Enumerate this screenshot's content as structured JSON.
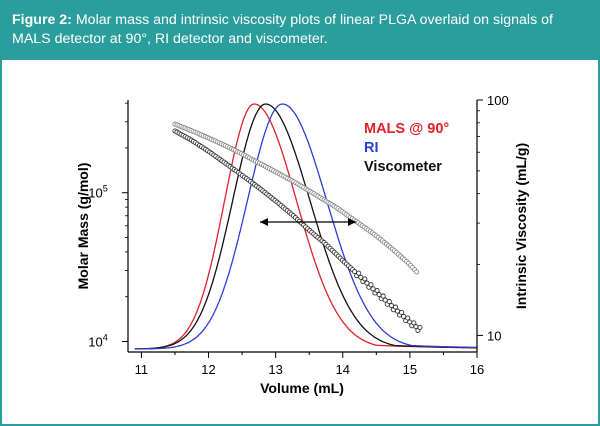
{
  "caption": {
    "label": "Figure 2:",
    "text": " Molar mass and intrinsic viscosity plots of linear PLGA overlaid on signals of MALS detector at 90°, RI detector and viscometer."
  },
  "chart_data": {
    "type": "line",
    "xlabel": "Volume (mL)",
    "ylabel_left": "Molar Mass (g/mol)",
    "ylabel_right": "Intrinsic Viscosity (mL/g)",
    "xlim": [
      10.8,
      16
    ],
    "x_ticks": [
      11,
      12,
      13,
      14,
      15,
      16
    ],
    "x_tick_labels": [
      "11",
      "12",
      "13",
      "14",
      "15",
      "16"
    ],
    "y_left_scale": "log",
    "y_left_lim": [
      8500,
      420000
    ],
    "y_left_tick_base": [
      "10",
      "10"
    ],
    "y_left_tick_exp": [
      "5",
      "4"
    ],
    "y_left_tick_values": [
      100000,
      10000
    ],
    "y_right_scale": "log",
    "y_right_lim": [
      8.5,
      100
    ],
    "y_right_tick_labels": [
      "100",
      "10"
    ],
    "y_right_tick_values": [
      100,
      10
    ],
    "grid": false,
    "legend_position": "top-right",
    "legend": [
      {
        "name": "MALS @ 90°",
        "color": "#e0202a"
      },
      {
        "name": "RI",
        "color": "#2b3fd6"
      },
      {
        "name": "Viscometer",
        "color": "#111111"
      }
    ],
    "detector_peaks": [
      {
        "name": "MALS @ 90°",
        "color": "#e0202a",
        "peak_volume": 12.68,
        "left_width": 0.44,
        "right_width": 0.63,
        "peak_relative": 1.0
      },
      {
        "name": "Viscometer",
        "color": "#111111",
        "peak_volume": 12.85,
        "left_width": 0.49,
        "right_width": 0.66,
        "peak_relative": 1.0
      },
      {
        "name": "RI",
        "color": "#2b3fd6",
        "peak_volume": 13.1,
        "left_width": 0.52,
        "right_width": 0.66,
        "peak_relative": 1.0
      }
    ],
    "series": [
      {
        "name": "Molar mass (MALS)",
        "axis": "left",
        "marker": "circle-open",
        "color": "#333333",
        "x": [
          11.5,
          11.75,
          12.0,
          12.25,
          12.5,
          12.75,
          13.0,
          13.25,
          13.5,
          13.75,
          14.0,
          14.25,
          14.5,
          14.75,
          15.0,
          15.15
        ],
        "y": [
          260000,
          225000,
          190000,
          158000,
          131000,
          108000,
          88000,
          71000,
          56000,
          45000,
          35000,
          27500,
          21500,
          17000,
          13500,
          12000
        ]
      },
      {
        "name": "Intrinsic viscosity",
        "axis": "right",
        "marker": "circle-open",
        "color": "#8a8a8a",
        "x": [
          11.5,
          11.8,
          12.1,
          12.4,
          12.7,
          13.0,
          13.3,
          13.6,
          13.9,
          14.2,
          14.5,
          14.8,
          15.0,
          15.1
        ],
        "y": [
          79,
          73,
          67,
          61,
          55,
          49.5,
          44.5,
          39.5,
          35,
          30.5,
          26.5,
          22.5,
          20,
          18.6
        ]
      }
    ]
  }
}
